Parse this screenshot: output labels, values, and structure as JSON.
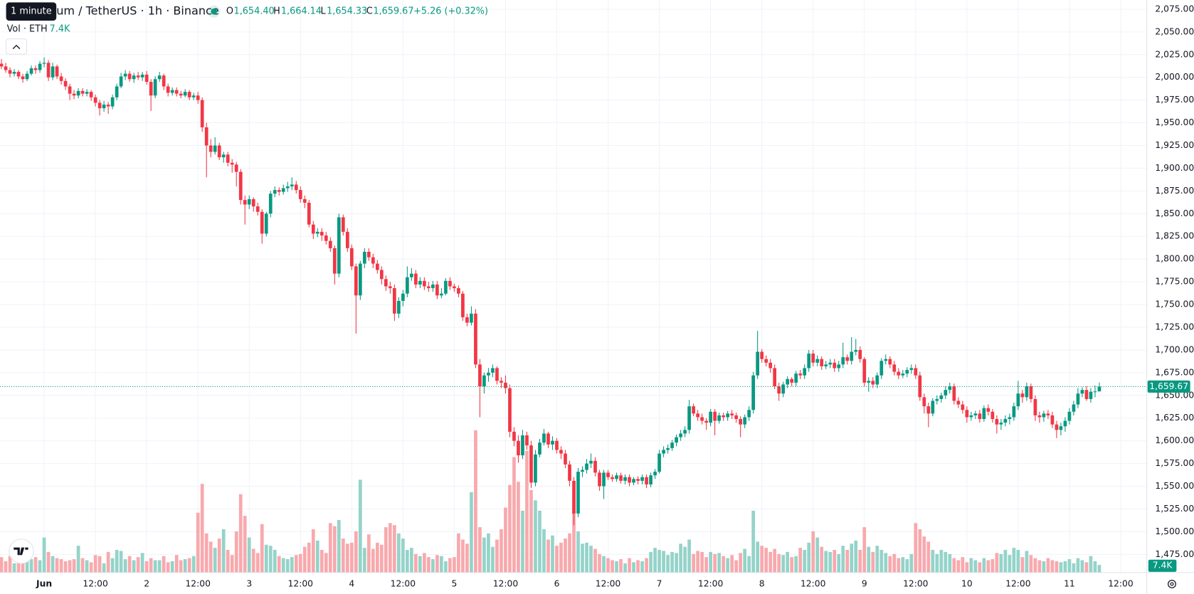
{
  "header": {
    "tooltip": "1 minute",
    "title": "um / TetherUS · 1h · Binance",
    "ohlc": [
      {
        "key": "O",
        "value": "1,654.40"
      },
      {
        "key": "H",
        "value": "1,664.14"
      },
      {
        "key": "L",
        "value": "1,654.33"
      },
      {
        "key": "C",
        "value": "1,659.67"
      }
    ],
    "change": "+5.26 (+0.32%)",
    "volume_title": "Vol · ETH",
    "volume_value": "7.4K"
  },
  "chart_data": {
    "type": "candlestick",
    "up_color": "#089981",
    "down_color": "#f23645",
    "up_volume_color": "#95d3c9",
    "down_volume_color": "#f8a9ad",
    "ylim": [
      1455,
      2085
    ],
    "yticks": [
      {
        "value": 1475,
        "label": "1,475.00"
      },
      {
        "value": 1500,
        "label": "1,500.00"
      },
      {
        "value": 1525,
        "label": "1,525.00"
      },
      {
        "value": 1550,
        "label": "1,550.00"
      },
      {
        "value": 1575,
        "label": "1,575.00"
      },
      {
        "value": 1600,
        "label": "1,600.00"
      },
      {
        "value": 1625,
        "label": "1,625.00"
      },
      {
        "value": 1650,
        "label": "1,650.00"
      },
      {
        "value": 1675,
        "label": "1,675.00"
      },
      {
        "value": 1700,
        "label": "1,700.00"
      },
      {
        "value": 1725,
        "label": "1,725.00"
      },
      {
        "value": 1750,
        "label": "1,750.00"
      },
      {
        "value": 1775,
        "label": "1,775.00"
      },
      {
        "value": 1800,
        "label": "1,800.00"
      },
      {
        "value": 1825,
        "label": "1,825.00"
      },
      {
        "value": 1850,
        "label": "1,850.00"
      },
      {
        "value": 1875,
        "label": "1,875.00"
      },
      {
        "value": 1900,
        "label": "1,900.00"
      },
      {
        "value": 1925,
        "label": "1,925.00"
      },
      {
        "value": 1950,
        "label": "1,950.00"
      },
      {
        "value": 1975,
        "label": "1,975.00"
      },
      {
        "value": 2000,
        "label": "2,000.00"
      },
      {
        "value": 2025,
        "label": "2,025.00"
      },
      {
        "value": 2050,
        "label": "2,050.00"
      },
      {
        "value": 2075,
        "label": "2,075.00"
      }
    ],
    "xticks": [
      "Jun",
      "12:00",
      "2",
      "12:00",
      "3",
      "12:00",
      "4",
      "12:00",
      "5",
      "12:00",
      "6",
      "12:00",
      "7",
      "12:00",
      "8",
      "12:00",
      "9",
      "12:00",
      "10",
      "12:00",
      "11",
      "12:00"
    ],
    "grid": true,
    "last_price_label": "1,659.67",
    "volume_label": "7.4K",
    "open": [
      2015,
      2012,
      2008,
      2004,
      2006,
      2001,
      1998,
      2004,
      2010,
      2008,
      2015,
      2016,
      2000,
      2012,
      2001,
      1996,
      1990,
      1982,
      1980,
      1985,
      1982,
      1984,
      1978,
      1972,
      1966,
      1970,
      1968,
      1978,
      1990,
      2001,
      2004,
      1998,
      2002,
      2000,
      2003,
      1995,
      1980,
      1998,
      2002,
      1990,
      1983,
      1986,
      1982,
      1980,
      1984,
      1978,
      1980,
      1975,
      1945,
      1925,
      1918,
      1925,
      1912,
      1915,
      1906,
      1904,
      1896,
      1865,
      1860,
      1866,
      1858,
      1852,
      1828,
      1850,
      1872,
      1876,
      1874,
      1878,
      1880,
      1882,
      1876,
      1866,
      1862,
      1838,
      1828,
      1830,
      1826,
      1820,
      1812,
      1784,
      1846,
      1830,
      1812,
      1792,
      1760,
      1795,
      1808,
      1802,
      1795,
      1788,
      1778,
      1770,
      1768,
      1740,
      1754,
      1762,
      1780,
      1784,
      1772,
      1776,
      1770,
      1768,
      1772,
      1760,
      1762,
      1776,
      1770,
      1768,
      1762,
      1736,
      1730,
      1740,
      1684,
      1660,
      1672,
      1675,
      1680,
      1666,
      1664,
      1658,
      1610,
      1600,
      1584,
      1606,
      1595,
      1554,
      1585,
      1598,
      1608,
      1596,
      1600,
      1590,
      1586,
      1574,
      1556,
      1520,
      1566,
      1568,
      1575,
      1578,
      1565,
      1550,
      1565,
      1560,
      1558,
      1562,
      1556,
      1560,
      1554,
      1558,
      1556,
      1560,
      1552,
      1562,
      1566,
      1586,
      1590,
      1592,
      1598,
      1604,
      1608,
      1612,
      1638,
      1630,
      1626,
      1622,
      1620,
      1632,
      1622,
      1628,
      1626,
      1630,
      1628,
      1624,
      1618,
      1626,
      1634,
      1672,
      1698,
      1690,
      1686,
      1680,
      1660,
      1652,
      1662,
      1668,
      1664,
      1674,
      1672,
      1680,
      1696,
      1686,
      1690,
      1682,
      1684,
      1686,
      1680,
      1684,
      1692,
      1688,
      1698,
      1700,
      1690,
      1664,
      1666,
      1662,
      1672,
      1688,
      1690,
      1684,
      1676,
      1672,
      1674,
      1678,
      1680,
      1672,
      1648,
      1638,
      1630,
      1644,
      1646,
      1650,
      1656,
      1660,
      1644,
      1640,
      1634,
      1626,
      1628,
      1630,
      1624,
      1636,
      1632,
      1624,
      1618,
      1620,
      1624,
      1626,
      1638,
      1652,
      1648,
      1660,
      1646,
      1628,
      1626,
      1630,
      1628,
      1618,
      1612,
      1616,
      1622,
      1632,
      1640,
      1652,
      1656,
      1646,
      1654,
      1654.4
    ],
    "high": [
      2020,
      2016,
      2011,
      2009,
      2008,
      2004,
      2007,
      2013,
      2013,
      2018,
      2022,
      2019,
      2016,
      2014,
      2005,
      1999,
      1993,
      1986,
      1988,
      1988,
      1987,
      1986,
      1981,
      1975,
      1974,
      1973,
      1981,
      1993,
      2005,
      2008,
      2007,
      2005,
      2006,
      2006,
      2007,
      1998,
      2001,
      2006,
      2004,
      1993,
      1989,
      1989,
      1985,
      1987,
      1986,
      1983,
      1984,
      1978,
      1950,
      1932,
      1934,
      1928,
      1918,
      1918,
      1910,
      1907,
      1899,
      1870,
      1870,
      1868,
      1862,
      1855,
      1852,
      1875,
      1880,
      1879,
      1882,
      1885,
      1890,
      1886,
      1880,
      1870,
      1865,
      1842,
      1834,
      1834,
      1830,
      1824,
      1815,
      1850,
      1849,
      1834,
      1816,
      1795,
      1798,
      1812,
      1812,
      1806,
      1799,
      1792,
      1782,
      1775,
      1772,
      1758,
      1766,
      1792,
      1790,
      1788,
      1780,
      1780,
      1775,
      1776,
      1776,
      1768,
      1779,
      1780,
      1773,
      1771,
      1765,
      1740,
      1748,
      1745,
      1690,
      1675,
      1680,
      1684,
      1682,
      1670,
      1672,
      1662,
      1615,
      1606,
      1612,
      1610,
      1600,
      1590,
      1602,
      1613,
      1610,
      1605,
      1603,
      1594,
      1590,
      1578,
      1560,
      1570,
      1572,
      1580,
      1586,
      1582,
      1568,
      1568,
      1568,
      1563,
      1565,
      1565,
      1563,
      1563,
      1560,
      1561,
      1563,
      1563,
      1565,
      1569,
      1590,
      1594,
      1596,
      1601,
      1607,
      1612,
      1616,
      1645,
      1641,
      1634,
      1630,
      1625,
      1635,
      1635,
      1631,
      1631,
      1633,
      1634,
      1631,
      1627,
      1629,
      1638,
      1676,
      1721,
      1701,
      1694,
      1690,
      1684,
      1664,
      1665,
      1671,
      1670,
      1677,
      1678,
      1684,
      1700,
      1700,
      1694,
      1693,
      1688,
      1690,
      1690,
      1688,
      1708,
      1695,
      1714,
      1712,
      1704,
      1692,
      1670,
      1670,
      1675,
      1691,
      1695,
      1693,
      1688,
      1680,
      1678,
      1681,
      1684,
      1684,
      1676,
      1652,
      1642,
      1647,
      1650,
      1653,
      1660,
      1664,
      1663,
      1648,
      1644,
      1638,
      1632,
      1633,
      1634,
      1639,
      1640,
      1635,
      1628,
      1624,
      1628,
      1630,
      1642,
      1666,
      1656,
      1664,
      1663,
      1650,
      1632,
      1633,
      1634,
      1632,
      1622,
      1620,
      1626,
      1636,
      1644,
      1658,
      1659,
      1660,
      1658,
      1661,
      1664.14
    ],
    "low": [
      2009,
      2005,
      2000,
      2001,
      1998,
      1994,
      1996,
      2002,
      2004,
      2005,
      2011,
      1996,
      1997,
      1998,
      1992,
      1986,
      1975,
      1976,
      1977,
      1979,
      1979,
      1974,
      1968,
      1958,
      1962,
      1960,
      1965,
      1975,
      1988,
      1997,
      1995,
      1994,
      1997,
      1996,
      1992,
      1963,
      1977,
      1995,
      1986,
      1979,
      1980,
      1979,
      1977,
      1978,
      1975,
      1975,
      1971,
      1940,
      1890,
      1912,
      1915,
      1909,
      1906,
      1902,
      1895,
      1880,
      1860,
      1838,
      1855,
      1852,
      1848,
      1817,
      1825,
      1846,
      1868,
      1870,
      1871,
      1874,
      1876,
      1872,
      1862,
      1856,
      1835,
      1822,
      1824,
      1820,
      1816,
      1808,
      1772,
      1780,
      1826,
      1808,
      1788,
      1718,
      1755,
      1790,
      1798,
      1790,
      1784,
      1772,
      1765,
      1762,
      1732,
      1735,
      1748,
      1758,
      1776,
      1768,
      1768,
      1766,
      1764,
      1764,
      1756,
      1757,
      1760,
      1766,
      1764,
      1758,
      1732,
      1726,
      1727,
      1680,
      1626,
      1652,
      1665,
      1670,
      1662,
      1658,
      1652,
      1604,
      1594,
      1576,
      1580,
      1590,
      1548,
      1550,
      1582,
      1595,
      1592,
      1590,
      1586,
      1580,
      1570,
      1550,
      1507,
      1516,
      1560,
      1564,
      1570,
      1561,
      1545,
      1536,
      1557,
      1555,
      1555,
      1553,
      1552,
      1550,
      1551,
      1552,
      1552,
      1548,
      1549,
      1558,
      1564,
      1582,
      1586,
      1589,
      1594,
      1600,
      1604,
      1608,
      1627,
      1622,
      1618,
      1612,
      1616,
      1606,
      1619,
      1622,
      1622,
      1624,
      1620,
      1604,
      1614,
      1622,
      1630,
      1668,
      1686,
      1682,
      1675,
      1657,
      1644,
      1648,
      1658,
      1660,
      1660,
      1668,
      1668,
      1676,
      1682,
      1682,
      1678,
      1679,
      1680,
      1676,
      1676,
      1680,
      1684,
      1684,
      1694,
      1686,
      1660,
      1654,
      1658,
      1658,
      1668,
      1684,
      1680,
      1672,
      1668,
      1669,
      1670,
      1674,
      1668,
      1644,
      1630,
      1615,
      1627,
      1640,
      1642,
      1646,
      1652,
      1640,
      1636,
      1630,
      1620,
      1622,
      1624,
      1620,
      1621,
      1628,
      1620,
      1608,
      1612,
      1616,
      1618,
      1622,
      1634,
      1642,
      1644,
      1642,
      1622,
      1620,
      1621,
      1624,
      1614,
      1603,
      1606,
      1610,
      1618,
      1628,
      1636,
      1648,
      1644,
      1642,
      1648,
      1654.33
    ],
    "close": [
      2012,
      2008,
      2004,
      2006,
      2001,
      1998,
      2004,
      2010,
      2008,
      2015,
      2016,
      2000,
      2012,
      2001,
      1996,
      1990,
      1982,
      1980,
      1985,
      1982,
      1984,
      1978,
      1972,
      1966,
      1970,
      1968,
      1978,
      1990,
      2001,
      2004,
      1998,
      2002,
      2000,
      2003,
      1995,
      1980,
      1998,
      2002,
      1990,
      1983,
      1986,
      1982,
      1980,
      1984,
      1978,
      1980,
      1975,
      1945,
      1925,
      1918,
      1925,
      1912,
      1915,
      1906,
      1904,
      1896,
      1865,
      1860,
      1866,
      1858,
      1852,
      1828,
      1850,
      1872,
      1876,
      1874,
      1878,
      1880,
      1882,
      1876,
      1866,
      1862,
      1838,
      1828,
      1830,
      1826,
      1820,
      1812,
      1784,
      1846,
      1830,
      1812,
      1792,
      1760,
      1795,
      1808,
      1802,
      1795,
      1788,
      1778,
      1770,
      1768,
      1740,
      1754,
      1762,
      1780,
      1784,
      1772,
      1776,
      1770,
      1768,
      1772,
      1760,
      1762,
      1776,
      1770,
      1768,
      1762,
      1736,
      1730,
      1740,
      1684,
      1660,
      1672,
      1675,
      1680,
      1666,
      1664,
      1658,
      1610,
      1600,
      1584,
      1606,
      1595,
      1554,
      1585,
      1598,
      1608,
      1596,
      1600,
      1590,
      1586,
      1574,
      1556,
      1520,
      1566,
      1568,
      1575,
      1578,
      1565,
      1550,
      1565,
      1560,
      1558,
      1562,
      1556,
      1560,
      1554,
      1558,
      1556,
      1560,
      1552,
      1562,
      1566,
      1586,
      1590,
      1592,
      1598,
      1604,
      1608,
      1612,
      1638,
      1630,
      1626,
      1622,
      1620,
      1632,
      1622,
      1628,
      1626,
      1630,
      1628,
      1624,
      1618,
      1626,
      1634,
      1672,
      1698,
      1690,
      1686,
      1680,
      1660,
      1652,
      1662,
      1668,
      1664,
      1674,
      1672,
      1680,
      1696,
      1686,
      1690,
      1682,
      1684,
      1686,
      1680,
      1684,
      1692,
      1688,
      1698,
      1700,
      1690,
      1664,
      1666,
      1662,
      1672,
      1688,
      1690,
      1684,
      1676,
      1672,
      1674,
      1678,
      1680,
      1672,
      1648,
      1638,
      1630,
      1644,
      1646,
      1650,
      1656,
      1660,
      1644,
      1640,
      1634,
      1626,
      1628,
      1630,
      1624,
      1636,
      1632,
      1624,
      1618,
      1620,
      1624,
      1626,
      1638,
      1652,
      1648,
      1660,
      1646,
      1628,
      1626,
      1630,
      1628,
      1618,
      1612,
      1616,
      1622,
      1632,
      1640,
      1652,
      1656,
      1646,
      1654,
      1654.4,
      1659.67
    ],
    "volume": [
      15000,
      11000,
      16000,
      9000,
      12000,
      10000,
      17000,
      13000,
      15000,
      12000,
      34000,
      20000,
      16000,
      14000,
      13000,
      11000,
      12000,
      13000,
      26000,
      14000,
      12000,
      10000,
      17000,
      16000,
      9000,
      20000,
      14000,
      22000,
      21000,
      13000,
      16000,
      12000,
      15000,
      19000,
      11000,
      14000,
      12000,
      12000,
      16000,
      10000,
      11000,
      17000,
      12000,
      13000,
      14000,
      16000,
      58000,
      86000,
      38000,
      30000,
      24000,
      33000,
      42000,
      22000,
      17000,
      40000,
      76000,
      55000,
      34000,
      23000,
      19000,
      47000,
      27000,
      26000,
      22000,
      16000,
      14000,
      13000,
      15000,
      17000,
      18000,
      25000,
      29000,
      42000,
      31000,
      22000,
      19000,
      48000,
      45000,
      51000,
      33000,
      28000,
      29000,
      40000,
      90000,
      24000,
      37000,
      23000,
      29000,
      27000,
      44000,
      48000,
      46000,
      38000,
      33000,
      22000,
      24000,
      18000,
      16000,
      19000,
      15000,
      13000,
      17000,
      16000,
      11000,
      14000,
      15000,
      38000,
      32000,
      28000,
      78000,
      138000,
      44000,
      34000,
      38000,
      25000,
      32000,
      42000,
      63000,
      85000,
      112000,
      88000,
      60000,
      118000,
      80000,
      70000,
      60000,
      42000,
      32000,
      36000,
      26000,
      29000,
      33000,
      38000,
      60000,
      40000,
      28000,
      29000,
      26000,
      23000,
      18000,
      16000,
      14000,
      12000,
      11000,
      13000,
      9000,
      14000,
      10000,
      12000,
      11000,
      14000,
      20000,
      24000,
      22000,
      21000,
      17000,
      20000,
      19000,
      28000,
      25000,
      32000,
      18000,
      21000,
      20000,
      15000,
      20000,
      18000,
      19000,
      16000,
      14000,
      17000,
      12000,
      19000,
      23000,
      16000,
      60000,
      30000,
      26000,
      24000,
      20000,
      23000,
      18000,
      17000,
      20000,
      15000,
      16000,
      24000,
      22000,
      29000,
      40000,
      34000,
      25000,
      21000,
      20000,
      22000,
      18000,
      26000,
      22000,
      28000,
      31000,
      22000,
      44000,
      25000,
      20000,
      26000,
      22000,
      19000,
      16000,
      18000,
      14000,
      15000,
      13000,
      18000,
      48000,
      42000,
      35000,
      30000,
      22000,
      18000,
      22000,
      20000,
      18000,
      14000,
      12000,
      15000,
      10000,
      14000,
      12000,
      10000,
      14000,
      12000,
      13000,
      19000,
      18000,
      22000,
      17000,
      24000,
      22000,
      15000,
      21000,
      17000,
      14000,
      12000,
      11000,
      14000,
      12000,
      11000,
      10000,
      11000,
      13000,
      9000,
      14000,
      12000,
      10000,
      16000,
      11000,
      7400
    ]
  }
}
